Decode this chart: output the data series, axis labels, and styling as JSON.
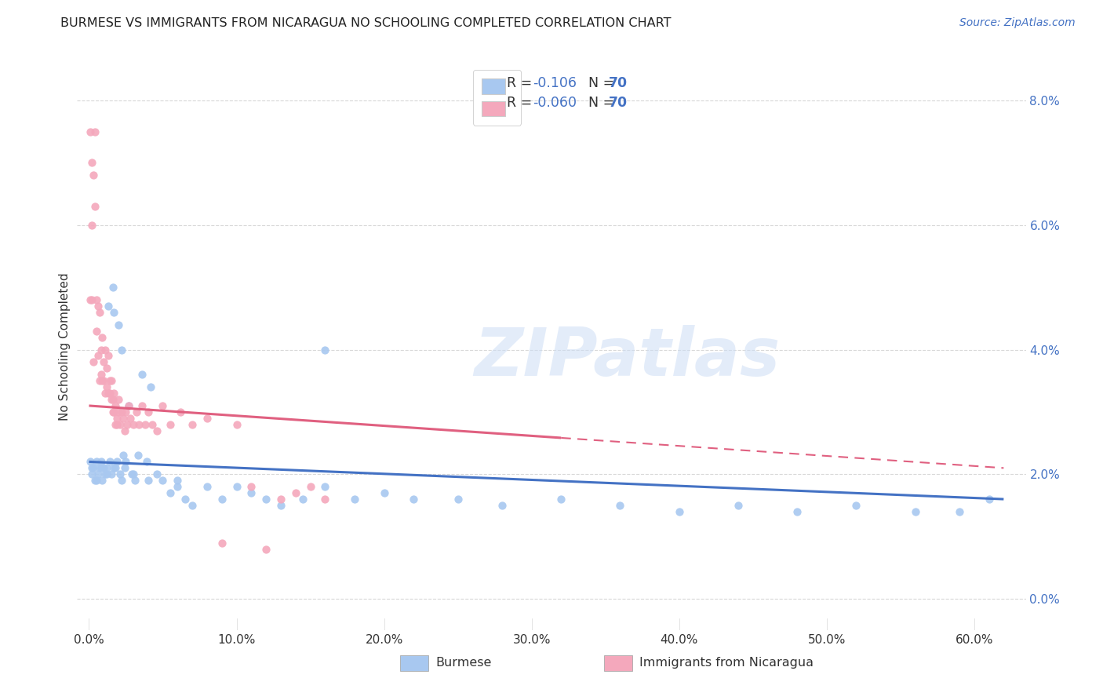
{
  "title": "BURMESE VS IMMIGRANTS FROM NICARAGUA NO SCHOOLING COMPLETED CORRELATION CHART",
  "source": "Source: ZipAtlas.com",
  "ylabel": "No Schooling Completed",
  "legend_blue_label": "Burmese",
  "legend_pink_label": "Immigrants from Nicaragua",
  "blue_R": "-0.106",
  "pink_R": "-0.060",
  "blue_N": "70",
  "pink_N": "70",
  "blue_color": "#a8c8f0",
  "pink_color": "#f4a8bc",
  "blue_line_color": "#4472c4",
  "pink_line_color": "#e06080",
  "watermark_text": "ZIPatlas",
  "background_color": "#ffffff",
  "grid_color": "#d8d8d8",
  "xlim_min": -0.008,
  "xlim_max": 0.635,
  "ylim_min": -0.005,
  "ylim_max": 0.086,
  "x_ticks": [
    0.0,
    0.1,
    0.2,
    0.3,
    0.4,
    0.5,
    0.6
  ],
  "y_ticks": [
    0.0,
    0.02,
    0.04,
    0.06,
    0.08
  ],
  "x_tick_labels": [
    "0.0%",
    "10.0%",
    "20.0%",
    "30.0%",
    "40.0%",
    "50.0%",
    "60.0%"
  ],
  "y_tick_labels": [
    "0.0%",
    "2.0%",
    "4.0%",
    "6.0%",
    "8.0%"
  ],
  "blue_x": [
    0.001,
    0.002,
    0.003,
    0.004,
    0.005,
    0.006,
    0.007,
    0.008,
    0.009,
    0.01,
    0.011,
    0.012,
    0.013,
    0.014,
    0.015,
    0.016,
    0.017,
    0.018,
    0.019,
    0.02,
    0.021,
    0.022,
    0.023,
    0.024,
    0.025,
    0.027,
    0.029,
    0.031,
    0.033,
    0.036,
    0.039,
    0.042,
    0.046,
    0.05,
    0.055,
    0.06,
    0.065,
    0.07,
    0.08,
    0.09,
    0.1,
    0.11,
    0.12,
    0.13,
    0.145,
    0.16,
    0.18,
    0.2,
    0.22,
    0.25,
    0.28,
    0.32,
    0.36,
    0.4,
    0.44,
    0.48,
    0.52,
    0.56,
    0.59,
    0.61,
    0.002,
    0.005,
    0.008,
    0.012,
    0.017,
    0.022,
    0.03,
    0.04,
    0.06,
    0.16
  ],
  "blue_y": [
    0.022,
    0.02,
    0.021,
    0.019,
    0.022,
    0.02,
    0.021,
    0.022,
    0.019,
    0.021,
    0.02,
    0.021,
    0.047,
    0.022,
    0.02,
    0.05,
    0.046,
    0.021,
    0.022,
    0.044,
    0.02,
    0.019,
    0.023,
    0.021,
    0.022,
    0.031,
    0.02,
    0.019,
    0.023,
    0.036,
    0.022,
    0.034,
    0.02,
    0.019,
    0.017,
    0.018,
    0.016,
    0.015,
    0.018,
    0.016,
    0.018,
    0.017,
    0.016,
    0.015,
    0.016,
    0.018,
    0.016,
    0.017,
    0.016,
    0.016,
    0.015,
    0.016,
    0.015,
    0.014,
    0.015,
    0.014,
    0.015,
    0.014,
    0.014,
    0.016,
    0.021,
    0.019,
    0.021,
    0.02,
    0.021,
    0.04,
    0.02,
    0.019,
    0.019,
    0.04
  ],
  "pink_x": [
    0.001,
    0.001,
    0.002,
    0.002,
    0.003,
    0.003,
    0.004,
    0.004,
    0.005,
    0.005,
    0.006,
    0.006,
    0.007,
    0.007,
    0.008,
    0.008,
    0.009,
    0.009,
    0.01,
    0.01,
    0.011,
    0.011,
    0.012,
    0.012,
    0.013,
    0.013,
    0.014,
    0.014,
    0.015,
    0.015,
    0.016,
    0.016,
    0.017,
    0.017,
    0.018,
    0.018,
    0.019,
    0.019,
    0.02,
    0.02,
    0.021,
    0.022,
    0.023,
    0.024,
    0.025,
    0.026,
    0.027,
    0.028,
    0.03,
    0.032,
    0.034,
    0.036,
    0.038,
    0.04,
    0.043,
    0.046,
    0.05,
    0.055,
    0.062,
    0.07,
    0.08,
    0.09,
    0.1,
    0.11,
    0.12,
    0.13,
    0.14,
    0.15,
    0.16,
    0.002
  ],
  "pink_y": [
    0.075,
    0.048,
    0.07,
    0.048,
    0.068,
    0.038,
    0.063,
    0.075,
    0.043,
    0.048,
    0.039,
    0.047,
    0.035,
    0.046,
    0.036,
    0.04,
    0.035,
    0.042,
    0.038,
    0.035,
    0.033,
    0.04,
    0.034,
    0.037,
    0.033,
    0.039,
    0.035,
    0.033,
    0.032,
    0.035,
    0.03,
    0.032,
    0.033,
    0.03,
    0.028,
    0.031,
    0.029,
    0.028,
    0.03,
    0.032,
    0.028,
    0.03,
    0.029,
    0.027,
    0.03,
    0.028,
    0.031,
    0.029,
    0.028,
    0.03,
    0.028,
    0.031,
    0.028,
    0.03,
    0.028,
    0.027,
    0.031,
    0.028,
    0.03,
    0.028,
    0.029,
    0.009,
    0.028,
    0.018,
    0.008,
    0.016,
    0.017,
    0.018,
    0.016,
    0.06
  ],
  "blue_line_x0": 0.0,
  "blue_line_x1": 0.62,
  "blue_line_y0": 0.022,
  "blue_line_y1": 0.016,
  "pink_line_x0": 0.0,
  "pink_line_x1": 0.62,
  "pink_line_y0": 0.031,
  "pink_line_y1": 0.021
}
